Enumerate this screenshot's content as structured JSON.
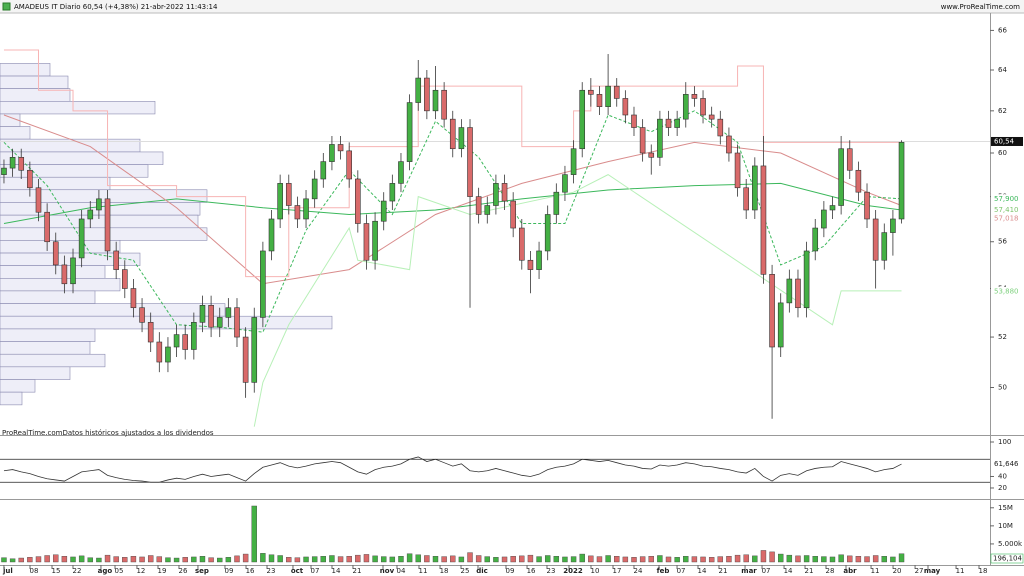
{
  "chart_data": [
    {
      "type": "candlestick",
      "title": "AMADEUS IT Diario 60,54 (+4,38%) 21-abr-2022 11:43:14",
      "source": "www.ProRealTime.com",
      "note": "ProRealTime.comDatos históricos ajustados a los dividendos",
      "log": true,
      "xlim": [
        -0.46,
        114.25
      ],
      "ylim": [
        48.3,
        66.9
      ],
      "yticks": [
        66,
        64,
        62,
        60,
        58,
        56,
        54,
        52,
        50
      ],
      "up_color": "#44b044",
      "down_color": "#d96a6a",
      "open": [
        59.0,
        59.3,
        59.8,
        59.2,
        58.4,
        57.3,
        56.0,
        55.0,
        54.2,
        55.3,
        57.0,
        57.4,
        57.9,
        55.6,
        54.8,
        54.0,
        53.2,
        52.6,
        51.8,
        51.0,
        51.6,
        52.1,
        51.5,
        52.6,
        53.3,
        52.4,
        52.8,
        53.2,
        52.0,
        50.2,
        52.8,
        55.6,
        57.0,
        58.6,
        57.6,
        57.0,
        57.9,
        58.8,
        59.6,
        60.4,
        60.1,
        58.8,
        56.8,
        55.2,
        56.9,
        57.8,
        58.6,
        59.6,
        62.4,
        63.6,
        62.0,
        63.0,
        61.6,
        60.2,
        61.2,
        58.0,
        57.2,
        57.6,
        58.6,
        57.8,
        56.6,
        55.2,
        54.8,
        55.6,
        57.2,
        58.2,
        59.0,
        60.2,
        63.0,
        62.8,
        62.2,
        63.2,
        62.6,
        61.8,
        61.2,
        60.0,
        59.8,
        61.6,
        61.2,
        61.6,
        62.8,
        62.6,
        61.8,
        61.6,
        60.8,
        60.0,
        58.4,
        57.4,
        59.4,
        54.6,
        51.6,
        53.4,
        54.4,
        53.2,
        55.6,
        56.6,
        57.4,
        57.6,
        60.2,
        59.2,
        58.2,
        57.0,
        55.2,
        56.4,
        57.0
      ],
      "high": [
        59.7,
        60.2,
        60.2,
        59.6,
        58.8,
        57.7,
        56.4,
        55.4,
        55.7,
        57.4,
        57.8,
        58.3,
        58.3,
        56.0,
        55.2,
        54.4,
        53.6,
        53.0,
        52.2,
        52.0,
        52.5,
        52.5,
        53.0,
        53.7,
        53.7,
        53.2,
        53.6,
        53.6,
        52.4,
        53.2,
        56.0,
        57.4,
        59.0,
        59.0,
        58.0,
        58.3,
        59.2,
        60.0,
        60.8,
        60.8,
        60.5,
        59.2,
        57.2,
        57.3,
        58.2,
        59.0,
        60.0,
        62.8,
        64.5,
        64.0,
        64.2,
        63.4,
        62.0,
        61.6,
        61.6,
        58.4,
        58.0,
        59.0,
        59.0,
        58.2,
        57.0,
        55.6,
        56.0,
        57.6,
        58.6,
        59.4,
        60.6,
        63.4,
        63.6,
        63.2,
        64.8,
        63.6,
        63.0,
        62.2,
        61.6,
        60.4,
        62.0,
        62.0,
        62.0,
        63.4,
        63.2,
        63.0,
        62.2,
        62.0,
        61.2,
        60.4,
        58.8,
        59.8,
        60.8,
        55.0,
        53.8,
        54.8,
        54.8,
        56.0,
        57.0,
        57.8,
        58.0,
        60.8,
        60.6,
        59.6,
        58.6,
        57.4,
        56.8,
        57.4,
        60.6
      ],
      "low": [
        58.6,
        58.9,
        58.8,
        58.0,
        56.9,
        55.6,
        54.6,
        53.8,
        53.8,
        54.9,
        56.6,
        57.0,
        55.2,
        54.4,
        53.6,
        52.8,
        52.2,
        51.4,
        50.6,
        50.6,
        51.2,
        51.1,
        51.1,
        52.2,
        52.0,
        52.0,
        52.4,
        51.6,
        49.6,
        49.8,
        52.4,
        55.2,
        56.6,
        57.2,
        56.6,
        56.6,
        57.5,
        58.4,
        59.2,
        59.7,
        58.4,
        56.4,
        54.8,
        54.8,
        56.5,
        57.4,
        58.2,
        59.2,
        62.0,
        61.6,
        61.6,
        61.2,
        59.8,
        59.8,
        53.2,
        56.8,
        56.8,
        57.2,
        57.4,
        56.2,
        54.8,
        53.8,
        54.4,
        55.2,
        56.8,
        57.8,
        58.6,
        59.8,
        62.2,
        61.8,
        61.8,
        62.2,
        61.4,
        60.8,
        59.6,
        59.0,
        59.4,
        60.8,
        60.8,
        61.2,
        62.2,
        61.4,
        61.2,
        60.4,
        59.6,
        58.0,
        57.0,
        57.0,
        54.2,
        48.8,
        51.2,
        53.0,
        52.8,
        52.8,
        55.2,
        56.2,
        57.0,
        57.2,
        58.8,
        57.8,
        56.6,
        54.0,
        54.8,
        55.4,
        56.8
      ],
      "close": [
        59.3,
        59.8,
        59.2,
        58.4,
        57.3,
        56.0,
        55.0,
        54.2,
        55.3,
        57.0,
        57.4,
        57.9,
        55.6,
        54.8,
        54.0,
        53.2,
        52.6,
        51.8,
        51.0,
        51.6,
        52.1,
        51.5,
        52.6,
        53.3,
        52.4,
        52.8,
        53.2,
        52.0,
        50.2,
        52.8,
        55.6,
        57.0,
        58.6,
        57.6,
        57.0,
        57.9,
        58.8,
        59.6,
        60.4,
        60.1,
        58.8,
        56.8,
        55.2,
        56.9,
        57.8,
        58.6,
        59.6,
        62.4,
        63.6,
        62.0,
        63.0,
        61.6,
        60.2,
        61.2,
        58.0,
        57.2,
        57.6,
        58.6,
        57.8,
        56.6,
        55.2,
        54.8,
        55.6,
        57.2,
        58.2,
        59.0,
        60.2,
        63.0,
        62.8,
        62.2,
        63.2,
        62.6,
        61.8,
        61.2,
        60.0,
        59.8,
        61.6,
        61.2,
        61.6,
        62.8,
        62.6,
        61.8,
        61.6,
        60.8,
        60.0,
        58.4,
        57.4,
        59.4,
        54.6,
        51.6,
        53.4,
        54.4,
        53.2,
        55.6,
        56.6,
        57.4,
        57.6,
        60.2,
        59.2,
        58.2,
        57.0,
        55.2,
        56.4,
        57.0,
        60.5
      ],
      "series": [
        {
          "color": "#3cb85c",
          "dash": false,
          "x": [
            0,
            10,
            20,
            30,
            40,
            50,
            60,
            70,
            80,
            90,
            100,
            104
          ],
          "values": [
            56.8,
            57.5,
            57.9,
            57.5,
            57.2,
            57.4,
            57.9,
            58.3,
            58.5,
            58.6,
            57.6,
            57.4
          ]
        },
        {
          "color": "#d98c8c",
          "dash": false,
          "x": [
            0,
            10,
            20,
            30,
            40,
            50,
            60,
            70,
            80,
            90,
            100,
            104
          ],
          "values": [
            61.8,
            60.3,
            57.5,
            54.2,
            54.8,
            57.2,
            58.6,
            59.6,
            60.5,
            60.0,
            58.2,
            57.6
          ]
        },
        {
          "color": "#3cb85c",
          "dash": true,
          "x": [
            0,
            5,
            10,
            15,
            20,
            25,
            30,
            35,
            40,
            45,
            50,
            55,
            60,
            65,
            70,
            75,
            80,
            85,
            90,
            95,
            100,
            104
          ],
          "values": [
            60.5,
            58.5,
            55.5,
            55.2,
            52.5,
            52.4,
            52.2,
            56.5,
            59.2,
            57.2,
            61.5,
            59.8,
            56.8,
            56.8,
            61.8,
            61.0,
            62.0,
            60.5,
            55.0,
            55.8,
            58.0,
            57.9
          ]
        },
        {
          "color": "#f7b4b4",
          "dash": false,
          "x": [
            0,
            4,
            4,
            8,
            8,
            12,
            12,
            20,
            20,
            28,
            28,
            33,
            33,
            40,
            40,
            48,
            48,
            60,
            60,
            66,
            66,
            68,
            68,
            85,
            85,
            88,
            88,
            104
          ],
          "values": [
            65,
            65,
            63,
            63,
            62,
            62,
            58.5,
            58.5,
            58,
            58,
            54.5,
            54.5,
            57.5,
            57.5,
            60.3,
            60.3,
            63.2,
            63.2,
            60.3,
            60.3,
            62,
            62,
            63.2,
            63.2,
            64.2,
            64.2,
            60.5,
            60.5
          ]
        },
        {
          "color": "#b8f0b8",
          "dash": false,
          "x": [
            29,
            30,
            30,
            33,
            33,
            40,
            40,
            41,
            41,
            47,
            47,
            48,
            48,
            54,
            54,
            66,
            66,
            70,
            70,
            96,
            96,
            97,
            97,
            104
          ],
          "values": [
            48.5,
            50.2,
            50.2,
            52.5,
            52.5,
            56.6,
            56.6,
            55.2,
            55.2,
            54.8,
            54.8,
            58.0,
            58.0,
            57.2,
            57.2,
            58.2,
            58.2,
            59.0,
            59.0,
            52.5,
            52.5,
            53.9,
            53.9,
            53.9
          ]
        }
      ],
      "right_labels": [
        {
          "value": 57.9,
          "label": "57,900",
          "color": "#3cb85c"
        },
        {
          "value": 57.211,
          "label": "57,211",
          "color": "#3cb85c"
        },
        {
          "value": 57.41,
          "label": "57,410",
          "color": "#7cc46c"
        },
        {
          "value": 57.018,
          "label": "57,018",
          "color": "#d98c8c"
        },
        {
          "value": 53.88,
          "label": "53,880",
          "color": "#7cd07c"
        }
      ],
      "last_price": {
        "value": 60.54,
        "label": "60,54"
      },
      "profile": {
        "xlim": [
          0,
          1000
        ],
        "color": "#eeeef8",
        "edge_color": "#8a8ab0",
        "edges": [
          64.33,
          63.7,
          63.08,
          62.46,
          61.85,
          61.25,
          60.65,
          60.05,
          59.46,
          58.88,
          58.31,
          57.74,
          57.17,
          56.61,
          56.06,
          55.51,
          54.97,
          54.43,
          53.9,
          53.37,
          52.85,
          52.33,
          51.82,
          51.31,
          50.81,
          50.31,
          49.82,
          49.33
        ],
        "values": [
          50,
          68,
          70,
          155,
          20,
          30,
          140,
          163,
          148,
          110,
          207,
          200,
          198,
          207,
          120,
          140,
          105,
          120,
          95,
          225,
          332,
          95,
          90,
          105,
          70,
          35,
          22
        ]
      }
    },
    {
      "type": "line",
      "xlim": [
        -0.46,
        114.25
      ],
      "ylim": [
        4.3,
        108.7
      ],
      "yticks": [
        100,
        40,
        20
      ],
      "levels": [
        70,
        30
      ],
      "color": "#333333",
      "values": [
        50,
        52,
        48,
        45,
        40,
        36,
        34,
        32,
        40,
        48,
        50,
        52,
        42,
        38,
        35,
        33,
        32,
        30,
        30,
        34,
        37,
        35,
        40,
        44,
        40,
        42,
        44,
        38,
        32,
        45,
        56,
        60,
        64,
        58,
        55,
        58,
        62,
        64,
        66,
        64,
        56,
        48,
        44,
        52,
        56,
        58,
        62,
        70,
        74,
        66,
        70,
        64,
        58,
        62,
        50,
        48,
        50,
        54,
        50,
        46,
        42,
        40,
        44,
        52,
        56,
        58,
        62,
        70,
        68,
        66,
        68,
        64,
        60,
        58,
        54,
        53,
        60,
        58,
        60,
        64,
        62,
        58,
        57,
        54,
        52,
        48,
        46,
        54,
        40,
        32,
        42,
        45,
        42,
        50,
        54,
        56,
        57,
        66,
        62,
        58,
        54,
        48,
        52,
        54,
        61.6
      ],
      "last": {
        "value": 61.646,
        "label": "61,646"
      }
    },
    {
      "type": "bar",
      "xlim": [
        -0.46,
        114.25
      ],
      "ylim": [
        0,
        16.6
      ],
      "yticks": [
        {
          "value": 15,
          "label": "15M"
        },
        {
          "value": 10,
          "label": "10M"
        },
        {
          "value": 5,
          "label": "5.000k"
        }
      ],
      "values": [
        1.2,
        0.9,
        1.1,
        1.3,
        1.5,
        1.8,
        2.0,
        1.6,
        1.4,
        1.7,
        1.2,
        1.1,
        1.9,
        1.5,
        1.3,
        1.6,
        1.4,
        1.8,
        1.5,
        1.2,
        1.1,
        1.3,
        1.4,
        1.6,
        1.2,
        1.1,
        1.3,
        1.7,
        2.2,
        15.5,
        2.4,
        2.0,
        1.8,
        1.3,
        1.2,
        1.4,
        1.5,
        1.6,
        1.8,
        1.5,
        1.6,
        1.9,
        2.1,
        1.7,
        1.5,
        1.4,
        1.6,
        2.3,
        2.0,
        1.8,
        1.6,
        1.5,
        1.7,
        1.4,
        2.6,
        1.8,
        1.5,
        1.3,
        1.4,
        1.6,
        1.7,
        1.9,
        1.5,
        1.8,
        1.6,
        1.4,
        1.5,
        2.2,
        1.7,
        1.5,
        1.8,
        1.6,
        1.4,
        1.3,
        1.5,
        1.6,
        1.8,
        1.4,
        1.3,
        1.6,
        1.5,
        1.4,
        1.3,
        1.5,
        1.6,
        1.9,
        2.0,
        1.7,
        3.2,
        2.8,
        2.2,
        1.9,
        1.7,
        1.8,
        1.6,
        1.5,
        1.4,
        2.0,
        1.7,
        1.6,
        1.5,
        1.8,
        1.6,
        1.4,
        2.3
      ],
      "last_label": "196,104",
      "xticks": [
        {
          "value": 0.46,
          "label": "jul"
        },
        {
          "value": 3.48,
          "label": "08"
        },
        {
          "value": 6.03,
          "label": "15"
        },
        {
          "value": 8.46,
          "label": "22"
        },
        {
          "value": 11.7,
          "label": "ago"
        },
        {
          "value": 13.33,
          "label": "05"
        },
        {
          "value": 15.87,
          "label": "12"
        },
        {
          "value": 18.31,
          "label": "19"
        },
        {
          "value": 20.74,
          "label": "26"
        },
        {
          "value": 22.94,
          "label": "sep"
        },
        {
          "value": 26.07,
          "label": "09"
        },
        {
          "value": 28.51,
          "label": "16"
        },
        {
          "value": 30.94,
          "label": "23"
        },
        {
          "value": 33.95,
          "label": "oct"
        },
        {
          "value": 36.04,
          "label": "07"
        },
        {
          "value": 38.47,
          "label": "14"
        },
        {
          "value": 40.9,
          "label": "21"
        },
        {
          "value": 44.38,
          "label": "nov"
        },
        {
          "value": 46.0,
          "label": "04"
        },
        {
          "value": 48.55,
          "label": "11"
        },
        {
          "value": 50.99,
          "label": "18"
        },
        {
          "value": 53.42,
          "label": "25"
        },
        {
          "value": 55.39,
          "label": "dic"
        },
        {
          "value": 58.63,
          "label": "09"
        },
        {
          "value": 61.07,
          "label": "16"
        },
        {
          "value": 63.38,
          "label": "23"
        },
        {
          "value": 65.93,
          "label": "2022"
        },
        {
          "value": 68.48,
          "label": "10"
        },
        {
          "value": 71.03,
          "label": "17"
        },
        {
          "value": 73.46,
          "label": "24"
        },
        {
          "value": 76.36,
          "label": "feb"
        },
        {
          "value": 78.45,
          "label": "07"
        },
        {
          "value": 80.88,
          "label": "14"
        },
        {
          "value": 83.31,
          "label": "21"
        },
        {
          "value": 86.33,
          "label": "mar"
        },
        {
          "value": 88.3,
          "label": "07"
        },
        {
          "value": 90.85,
          "label": "14"
        },
        {
          "value": 93.28,
          "label": "21"
        },
        {
          "value": 95.71,
          "label": "28"
        },
        {
          "value": 98.03,
          "label": "abr"
        },
        {
          "value": 100.93,
          "label": "11"
        },
        {
          "value": 103.48,
          "label": "20"
        },
        {
          "value": 106.03,
          "label": "27"
        },
        {
          "value": 107.53,
          "label": "may"
        },
        {
          "value": 110.78,
          "label": "11"
        },
        {
          "value": 113.44,
          "label": "18"
        }
      ]
    }
  ]
}
